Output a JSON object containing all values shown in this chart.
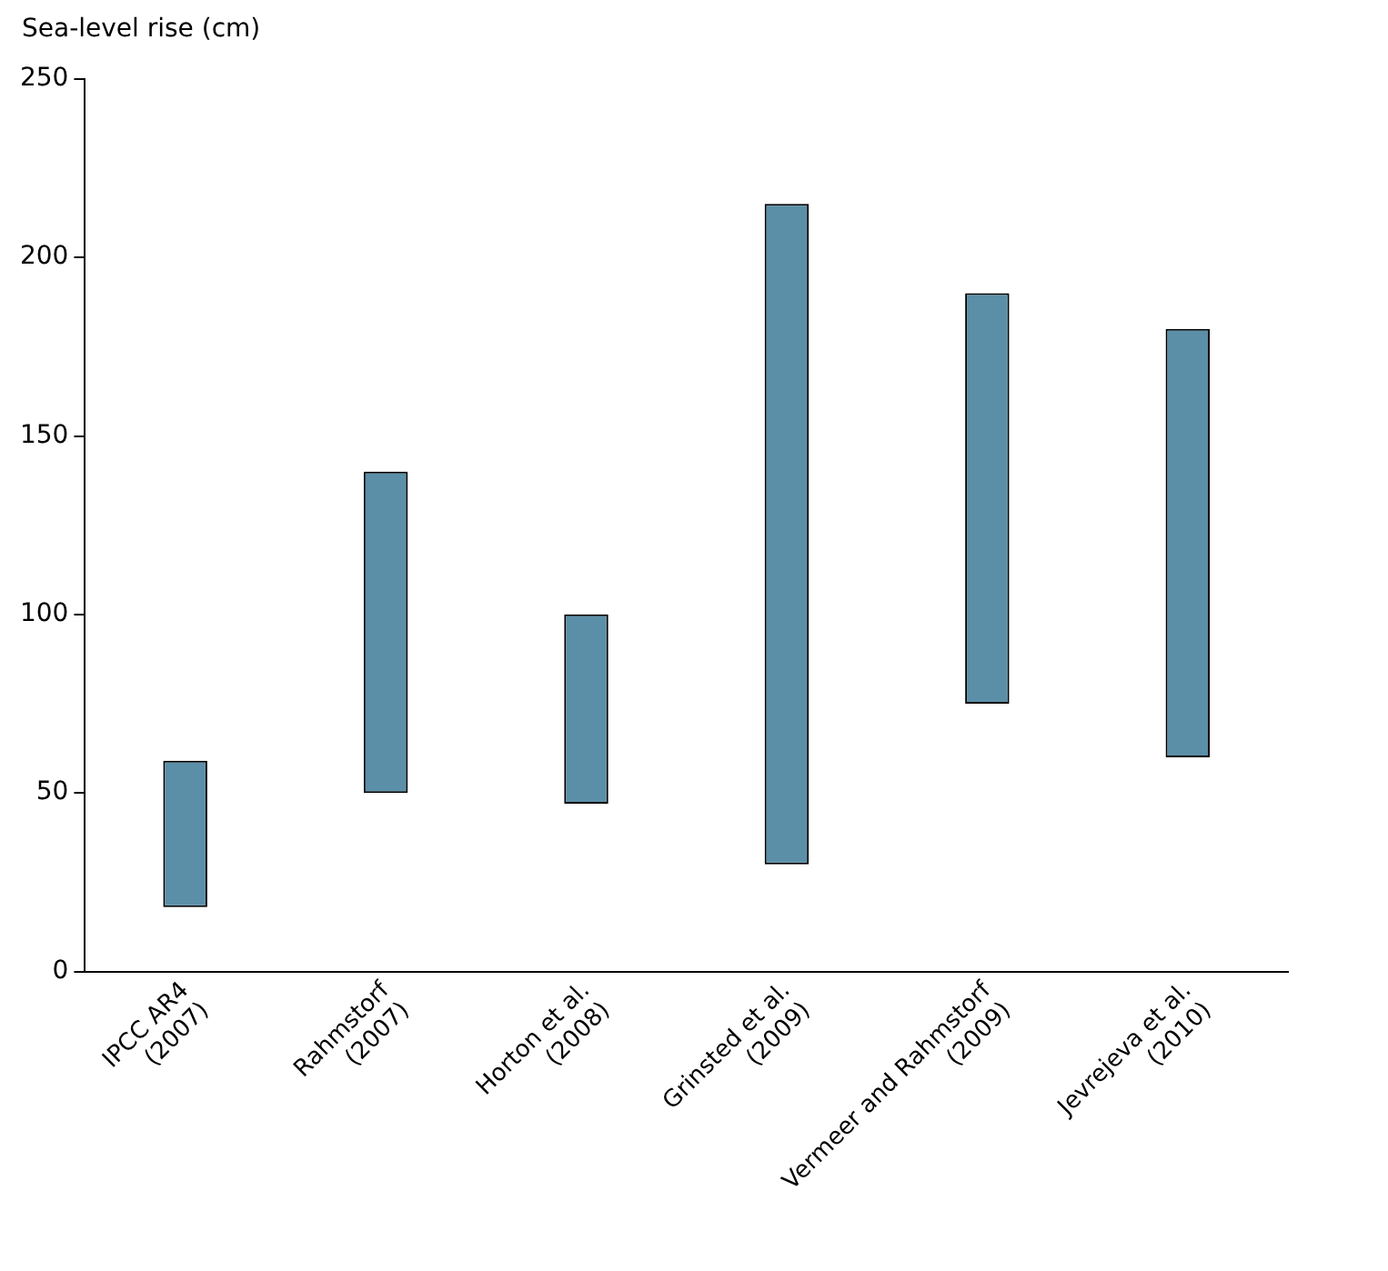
{
  "chart_data": {
    "type": "bar",
    "ylabel": "Sea-level rise (cm)",
    "categories": [
      "IPCC AR4\n(2007)",
      "Rahmstorf\n(2007)",
      "Horton et al.\n(2008)",
      "Grinsted et al.\n(2009)",
      "Vermeer and Rahmstorf\n(2009)",
      "Jevrejeva et al.\n(2010)"
    ],
    "base": [
      18,
      50,
      47,
      30,
      75,
      60
    ],
    "values": [
      41,
      90,
      53,
      185,
      115,
      120
    ],
    "color": "#5b8fa8",
    "ylim": [
      0,
      250
    ],
    "yticks": [
      0,
      50,
      100,
      150,
      200,
      250
    ],
    "grid": false,
    "legend": false
  }
}
